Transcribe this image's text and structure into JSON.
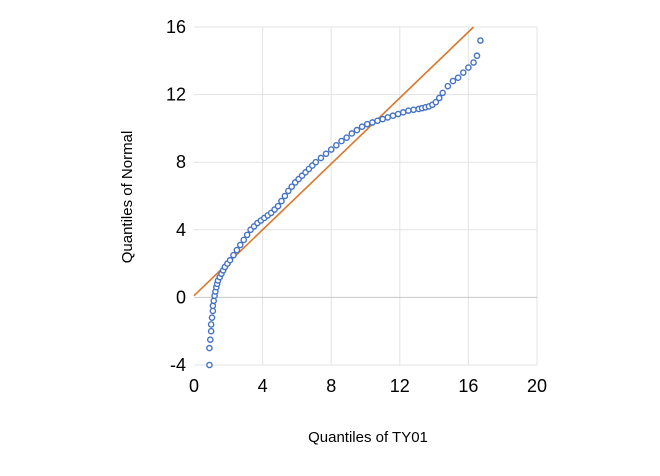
{
  "chart_data": {
    "type": "scatter",
    "title": "",
    "xlabel": "Quantiles of TY01",
    "ylabel": "Quantiles of Normal",
    "xlim": [
      0,
      20
    ],
    "ylim": [
      -4,
      16
    ],
    "xticks": [
      0,
      4,
      8,
      12,
      16,
      20
    ],
    "yticks": [
      -4,
      0,
      4,
      8,
      12,
      16
    ],
    "grid": true,
    "legend": "none",
    "colors": {
      "points": "#4472C4",
      "reference_line": "#D9782D"
    },
    "reference_line": {
      "x": [
        0,
        16.3
      ],
      "y": [
        0.1,
        16
      ]
    },
    "series": [
      {
        "x": [
          0.9,
          0.9,
          0.95,
          1.0,
          1.0,
          1.05,
          1.1,
          1.1,
          1.15,
          1.2,
          1.25,
          1.3,
          1.35,
          1.4,
          1.5,
          1.6,
          1.7,
          1.8,
          1.95,
          2.1,
          2.3,
          2.5,
          2.7,
          2.9,
          3.1,
          3.3,
          3.5,
          3.7,
          3.9,
          4.1,
          4.3,
          4.5,
          4.7,
          4.9,
          5.1,
          5.3,
          5.5,
          5.7,
          5.9,
          6.1,
          6.3,
          6.5,
          6.7,
          6.9,
          7.1,
          7.4,
          7.7,
          8.0,
          8.3,
          8.6,
          8.9,
          9.2,
          9.5,
          9.8,
          10.1,
          10.4,
          10.7,
          11.0,
          11.3,
          11.6,
          11.9,
          12.2,
          12.5,
          12.8,
          13.1,
          13.3,
          13.5,
          13.7,
          13.9,
          14.1,
          14.3,
          14.5,
          14.8,
          15.1,
          15.4,
          15.7,
          16.0,
          16.3,
          16.5,
          16.7
        ],
        "y": [
          -4.0,
          -3.0,
          -2.5,
          -2.0,
          -1.6,
          -1.2,
          -0.8,
          -0.5,
          -0.2,
          0.1,
          0.35,
          0.6,
          0.8,
          1.0,
          1.2,
          1.4,
          1.6,
          1.8,
          2.0,
          2.2,
          2.5,
          2.8,
          3.1,
          3.4,
          3.7,
          4.0,
          4.2,
          4.4,
          4.55,
          4.7,
          4.85,
          5.0,
          5.2,
          5.4,
          5.7,
          6.0,
          6.3,
          6.55,
          6.8,
          7.0,
          7.2,
          7.4,
          7.6,
          7.8,
          8.0,
          8.25,
          8.5,
          8.75,
          9.0,
          9.25,
          9.45,
          9.7,
          9.9,
          10.1,
          10.25,
          10.35,
          10.45,
          10.55,
          10.65,
          10.75,
          10.85,
          10.95,
          11.05,
          11.1,
          11.15,
          11.2,
          11.25,
          11.3,
          11.4,
          11.55,
          11.8,
          12.1,
          12.5,
          12.8,
          13.0,
          13.3,
          13.6,
          13.9,
          14.3,
          15.2
        ]
      }
    ]
  }
}
